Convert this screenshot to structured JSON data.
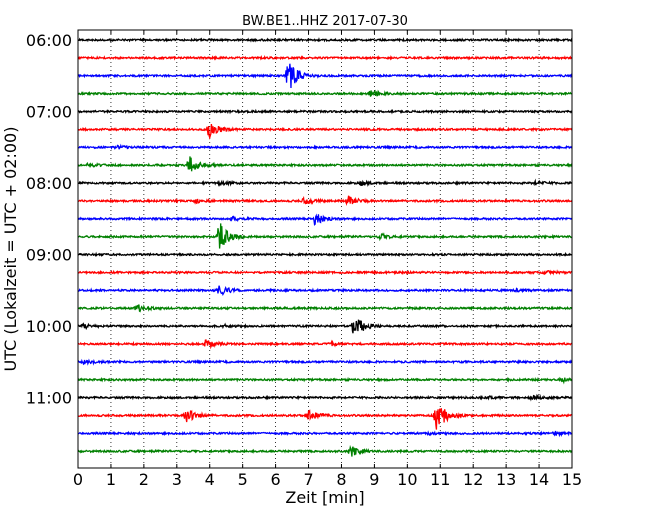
{
  "chart_data": {
    "type": "line",
    "title": "BW.BE1..HHZ 2017-07-30",
    "xlabel": "Zeit  [min]",
    "ylabel": "UTC (Lokalzeit = UTC + 02:00)",
    "xlim": [
      0,
      15
    ],
    "x_ticks": [
      "0",
      "1",
      "2",
      "3",
      "4",
      "5",
      "6",
      "7",
      "8",
      "9",
      "10",
      "11",
      "12",
      "13",
      "14",
      "15"
    ],
    "y_ticks": [
      "06:00",
      "07:00",
      "08:00",
      "09:00",
      "10:00",
      "11:00"
    ],
    "grid": "vertical dotted",
    "line_colors": [
      "#000000",
      "#ff0000",
      "#0000ff",
      "#008000"
    ],
    "traces": [
      {
        "start": "06:00",
        "events": []
      },
      {
        "start": "06:15",
        "events": []
      },
      {
        "start": "06:30",
        "events": [
          {
            "t": 6.4,
            "amp": 1.0
          }
        ]
      },
      {
        "start": "06:45",
        "events": [
          {
            "t": 8.9,
            "amp": 0.2
          }
        ]
      },
      {
        "start": "07:00",
        "events": []
      },
      {
        "start": "07:15",
        "events": [
          {
            "t": 4.0,
            "amp": 0.5
          }
        ]
      },
      {
        "start": "07:30",
        "events": [
          {
            "t": 1.2,
            "amp": 0.08
          }
        ]
      },
      {
        "start": "07:45",
        "events": [
          {
            "t": 3.4,
            "amp": 0.55
          },
          {
            "t": 0.3,
            "amp": 0.1
          }
        ]
      },
      {
        "start": "08:00",
        "events": [
          {
            "t": 8.6,
            "amp": 0.12
          },
          {
            "t": 4.3,
            "amp": 0.1
          },
          {
            "t": 13.9,
            "amp": 0.1
          }
        ]
      },
      {
        "start": "08:15",
        "events": [
          {
            "t": 8.2,
            "amp": 0.28
          },
          {
            "t": 6.9,
            "amp": 0.2
          },
          {
            "t": 3.6,
            "amp": 0.1
          }
        ]
      },
      {
        "start": "08:30",
        "events": [
          {
            "t": 7.2,
            "amp": 0.35
          },
          {
            "t": 4.7,
            "amp": 0.1
          }
        ]
      },
      {
        "start": "08:45",
        "events": [
          {
            "t": 4.3,
            "amp": 0.85
          },
          {
            "t": 9.2,
            "amp": 0.15
          }
        ]
      },
      {
        "start": "09:00",
        "events": []
      },
      {
        "start": "09:15",
        "events": [
          {
            "t": 14.2,
            "amp": 0.08
          }
        ]
      },
      {
        "start": "09:30",
        "events": [
          {
            "t": 4.3,
            "amp": 0.3
          },
          {
            "t": 13.3,
            "amp": 0.08
          }
        ]
      },
      {
        "start": "09:45",
        "events": [
          {
            "t": 1.8,
            "amp": 0.22
          }
        ]
      },
      {
        "start": "10:00",
        "events": [
          {
            "t": 8.4,
            "amp": 0.75
          },
          {
            "t": 0.2,
            "amp": 0.12
          },
          {
            "t": 4.4,
            "amp": 0.08
          }
        ]
      },
      {
        "start": "10:15",
        "events": [
          {
            "t": 3.9,
            "amp": 0.25
          },
          {
            "t": 7.7,
            "amp": 0.08
          }
        ]
      },
      {
        "start": "10:30",
        "events": [
          {
            "t": 0.2,
            "amp": 0.12
          }
        ]
      },
      {
        "start": "10:45",
        "events": [
          {
            "t": 14.7,
            "amp": 0.12
          }
        ]
      },
      {
        "start": "11:00",
        "events": [
          {
            "t": 13.8,
            "amp": 0.1
          },
          {
            "t": 12.5,
            "amp": 0.05
          }
        ]
      },
      {
        "start": "11:15",
        "events": [
          {
            "t": 10.9,
            "amp": 0.95
          },
          {
            "t": 3.3,
            "amp": 0.45
          },
          {
            "t": 7.0,
            "amp": 0.35
          }
        ]
      },
      {
        "start": "11:30",
        "events": [
          {
            "t": 14.5,
            "amp": 0.1
          },
          {
            "t": 10.7,
            "amp": 0.06
          }
        ]
      },
      {
        "start": "11:45",
        "events": [
          {
            "t": 8.3,
            "amp": 0.3
          }
        ]
      }
    ]
  }
}
